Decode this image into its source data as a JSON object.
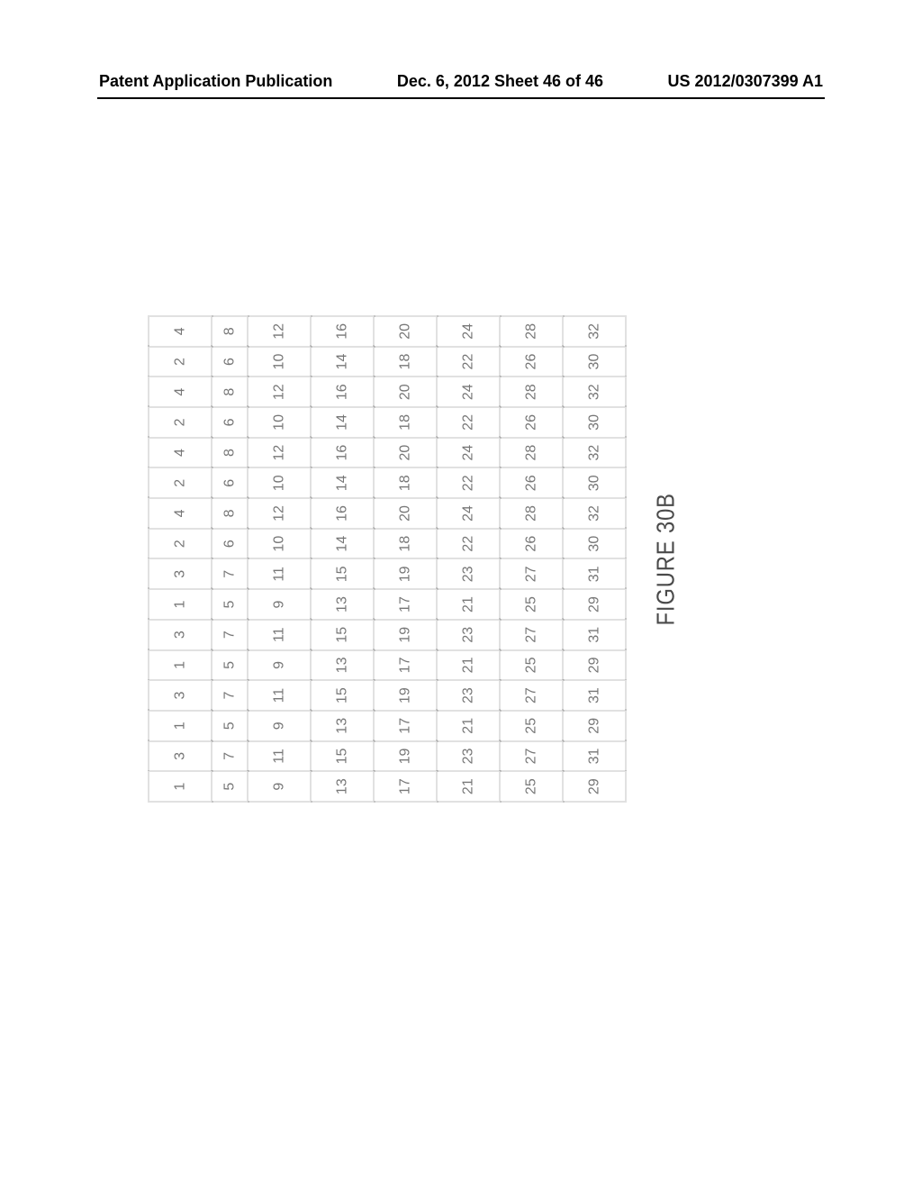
{
  "header": {
    "left": "Patent Application Publication",
    "center": "Dec. 6, 2012   Sheet 46 of 46",
    "right": "US 2012/0307399 A1"
  },
  "figure": {
    "caption": "FIGURE 30B",
    "caption_color": "#4a4a4a",
    "caption_fontsize": 28,
    "cell_text_color": "#777777",
    "cell_fontsize": 16,
    "border_color": "#888888",
    "border_style": "dotted",
    "background": "#ffffff",
    "orientation": "rotated_ccw_90",
    "columns": 16,
    "rows_original": 8,
    "narrow_cell_w": 57,
    "narrow_cell_h": 40,
    "wide_cell_h": 70,
    "row_is_wide": [
      true,
      false,
      true,
      true,
      true,
      true,
      true,
      true
    ],
    "rows_data": [
      [
        "1",
        "3",
        "1",
        "3",
        "1",
        "3",
        "1",
        "3",
        "2",
        "4",
        "2",
        "4",
        "2",
        "4",
        "2",
        "4"
      ],
      [
        "5",
        "7",
        "5",
        "7",
        "5",
        "7",
        "5",
        "7",
        "6",
        "8",
        "6",
        "8",
        "6",
        "8",
        "6",
        "8"
      ],
      [
        "9",
        "11",
        "9",
        "11",
        "9",
        "11",
        "9",
        "11",
        "10",
        "12",
        "10",
        "12",
        "10",
        "12",
        "10",
        "12"
      ],
      [
        "13",
        "15",
        "13",
        "15",
        "13",
        "15",
        "13",
        "15",
        "14",
        "16",
        "14",
        "16",
        "14",
        "16",
        "14",
        "16"
      ],
      [
        "17",
        "19",
        "17",
        "19",
        "17",
        "19",
        "17",
        "19",
        "18",
        "20",
        "18",
        "20",
        "18",
        "20",
        "18",
        "20"
      ],
      [
        "21",
        "23",
        "21",
        "23",
        "21",
        "23",
        "21",
        "23",
        "22",
        "24",
        "22",
        "24",
        "22",
        "24",
        "22",
        "24"
      ],
      [
        "25",
        "27",
        "25",
        "27",
        "25",
        "27",
        "25",
        "27",
        "26",
        "28",
        "26",
        "28",
        "26",
        "28",
        "26",
        "28"
      ],
      [
        "29",
        "31",
        "29",
        "31",
        "29",
        "31",
        "29",
        "31",
        "30",
        "32",
        "30",
        "32",
        "30",
        "32",
        "30",
        "32"
      ]
    ]
  }
}
